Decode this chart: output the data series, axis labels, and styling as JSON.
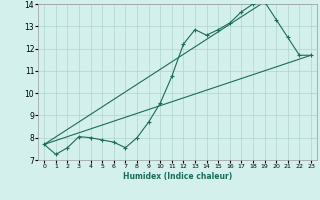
{
  "xlabel": "Humidex (Indice chaleur)",
  "xlim": [
    -0.5,
    23.5
  ],
  "ylim": [
    7,
    14
  ],
  "xticks": [
    0,
    1,
    2,
    3,
    4,
    5,
    6,
    7,
    8,
    9,
    10,
    11,
    12,
    13,
    14,
    15,
    16,
    17,
    18,
    19,
    20,
    21,
    22,
    23
  ],
  "yticks": [
    7,
    8,
    9,
    10,
    11,
    12,
    13,
    14
  ],
  "bg_color": "#d4f0ec",
  "grid_color": "#aed4ce",
  "line_color": "#1a6b5a",
  "line1_x": [
    0,
    1,
    2,
    3,
    4,
    5,
    6,
    7,
    8,
    9,
    10,
    11,
    12,
    13,
    14,
    15,
    16,
    17,
    18,
    19,
    20,
    21,
    22,
    23
  ],
  "line1_y": [
    7.7,
    7.25,
    7.55,
    8.05,
    8.0,
    7.9,
    7.8,
    7.55,
    8.0,
    8.7,
    9.55,
    10.75,
    12.2,
    12.85,
    12.6,
    12.85,
    13.15,
    13.65,
    14.0,
    14.1,
    13.3,
    12.5,
    11.7,
    11.7
  ],
  "line2_x": [
    0,
    23
  ],
  "line2_y": [
    7.7,
    11.7
  ],
  "line3_x": [
    0,
    19
  ],
  "line3_y": [
    7.7,
    14.1
  ]
}
